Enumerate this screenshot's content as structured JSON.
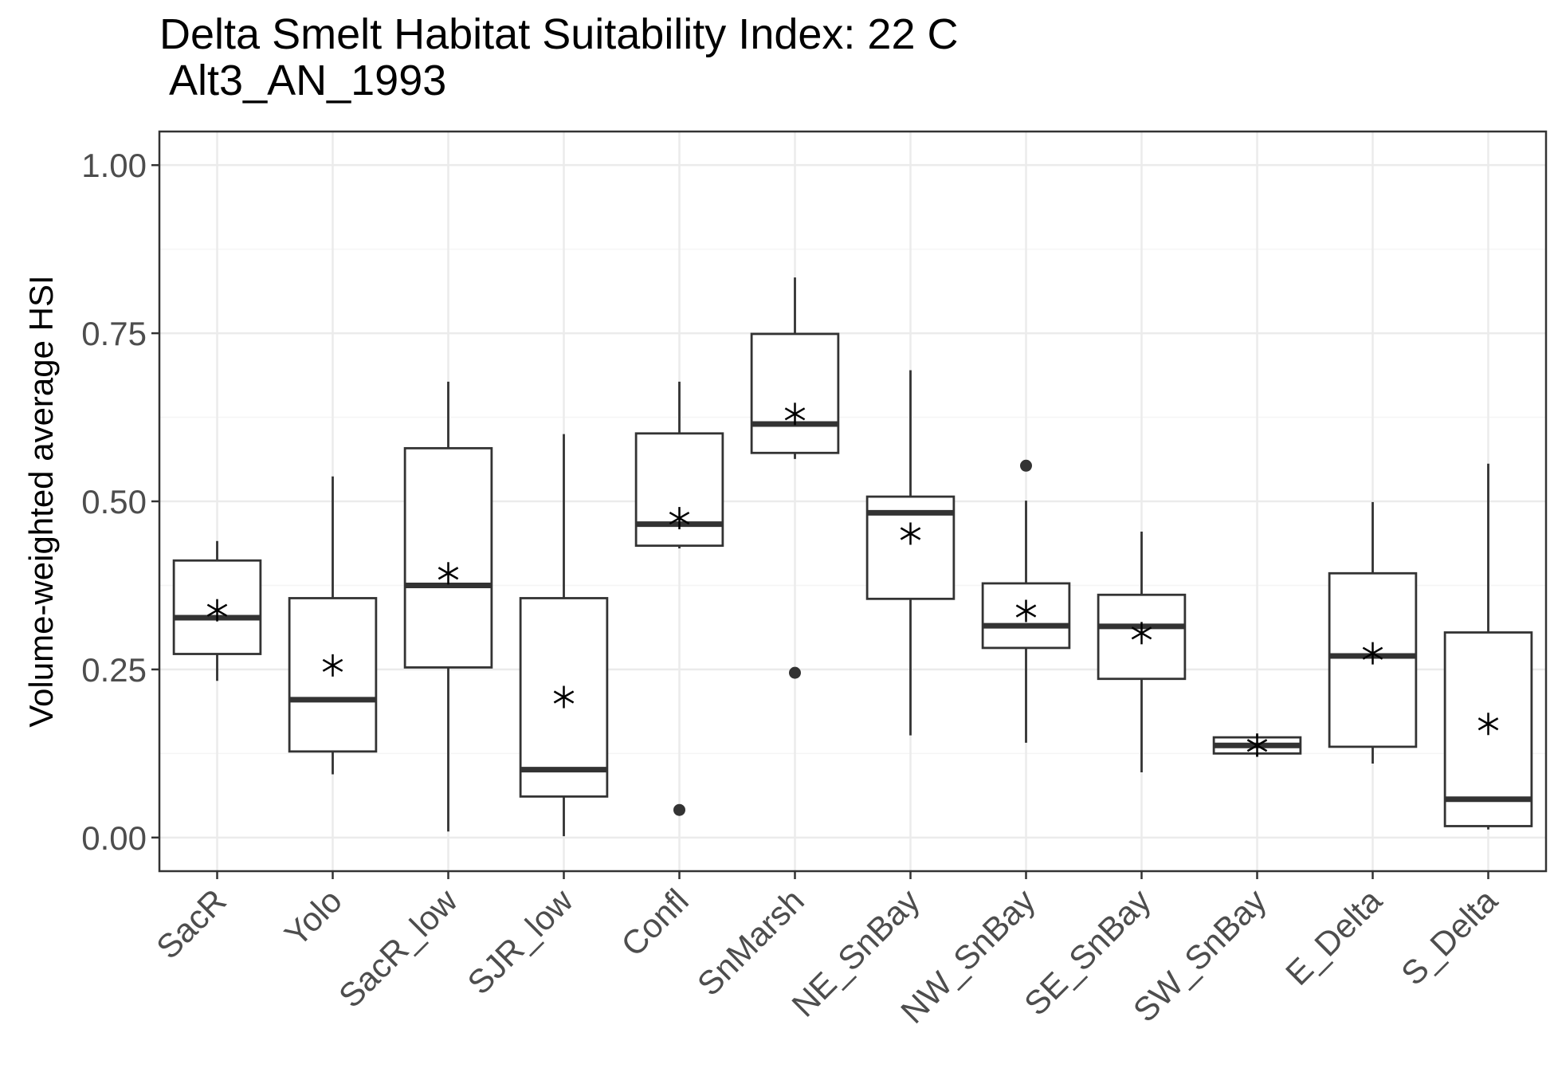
{
  "chart_data": {
    "type": "boxplot",
    "title": "Delta Smelt Habitat Suitability Index: 22 C",
    "subtitle": " Alt3_AN_1993",
    "xlabel": "",
    "ylabel": "Volume-weighted average HSI",
    "ylim": [
      -0.05,
      1.05
    ],
    "yticks": [
      "0.00",
      "0.25",
      "0.50",
      "0.75",
      "1.00"
    ],
    "grid": true,
    "categories": [
      "SacR",
      "Yolo",
      "SacR_low",
      "SJR_low",
      "Confl",
      "SnMarsh",
      "NE_SnBay",
      "NW_SnBay",
      "SE_SnBay",
      "SW_SnBay",
      "E_Delta",
      "S_Delta"
    ],
    "boxes": [
      {
        "category": "SacR",
        "min": 0.233,
        "q1": 0.273,
        "median": 0.327,
        "q3": 0.412,
        "max": 0.441,
        "mean": 0.338,
        "outliers": []
      },
      {
        "category": "Yolo",
        "min": 0.094,
        "q1": 0.128,
        "median": 0.205,
        "q3": 0.356,
        "max": 0.537,
        "mean": 0.256,
        "outliers": []
      },
      {
        "category": "SacR_low",
        "min": 0.009,
        "q1": 0.253,
        "median": 0.375,
        "q3": 0.579,
        "max": 0.678,
        "mean": 0.393,
        "outliers": []
      },
      {
        "category": "SJR_low",
        "min": 0.002,
        "q1": 0.061,
        "median": 0.101,
        "q3": 0.356,
        "max": 0.6,
        "mean": 0.209,
        "outliers": []
      },
      {
        "category": "Confl",
        "min": 0.43,
        "q1": 0.434,
        "median": 0.466,
        "q3": 0.601,
        "max": 0.678,
        "mean": 0.475,
        "outliers": [
          0.041
        ]
      },
      {
        "category": "SnMarsh",
        "min": 0.563,
        "q1": 0.572,
        "median": 0.615,
        "q3": 0.749,
        "max": 0.833,
        "mean": 0.63,
        "outliers": [
          0.245
        ]
      },
      {
        "category": "NE_SnBay",
        "min": 0.152,
        "q1": 0.355,
        "median": 0.483,
        "q3": 0.507,
        "max": 0.695,
        "mean": 0.452,
        "outliers": []
      },
      {
        "category": "NW_SnBay",
        "min": 0.141,
        "q1": 0.282,
        "median": 0.315,
        "q3": 0.378,
        "max": 0.501,
        "mean": 0.337,
        "outliers": [
          0.553
        ]
      },
      {
        "category": "SE_SnBay",
        "min": 0.097,
        "q1": 0.236,
        "median": 0.314,
        "q3": 0.361,
        "max": 0.455,
        "mean": 0.304,
        "outliers": []
      },
      {
        "category": "SW_SnBay",
        "min": 0.12,
        "q1": 0.125,
        "median": 0.137,
        "q3": 0.149,
        "max": 0.155,
        "mean": 0.137,
        "outliers": []
      },
      {
        "category": "E_Delta",
        "min": 0.11,
        "q1": 0.135,
        "median": 0.27,
        "q3": 0.393,
        "max": 0.499,
        "mean": 0.274,
        "outliers": []
      },
      {
        "category": "S_Delta",
        "min": 0.012,
        "q1": 0.017,
        "median": 0.057,
        "q3": 0.305,
        "max": 0.556,
        "mean": 0.169,
        "outliers": []
      }
    ]
  },
  "colors": {
    "box_stroke": "#333333",
    "grid_major": "#ebebeb",
    "grid_minor": "#f5f5f5",
    "panel_border": "#333333",
    "tick_text": "#4d4d4d"
  }
}
